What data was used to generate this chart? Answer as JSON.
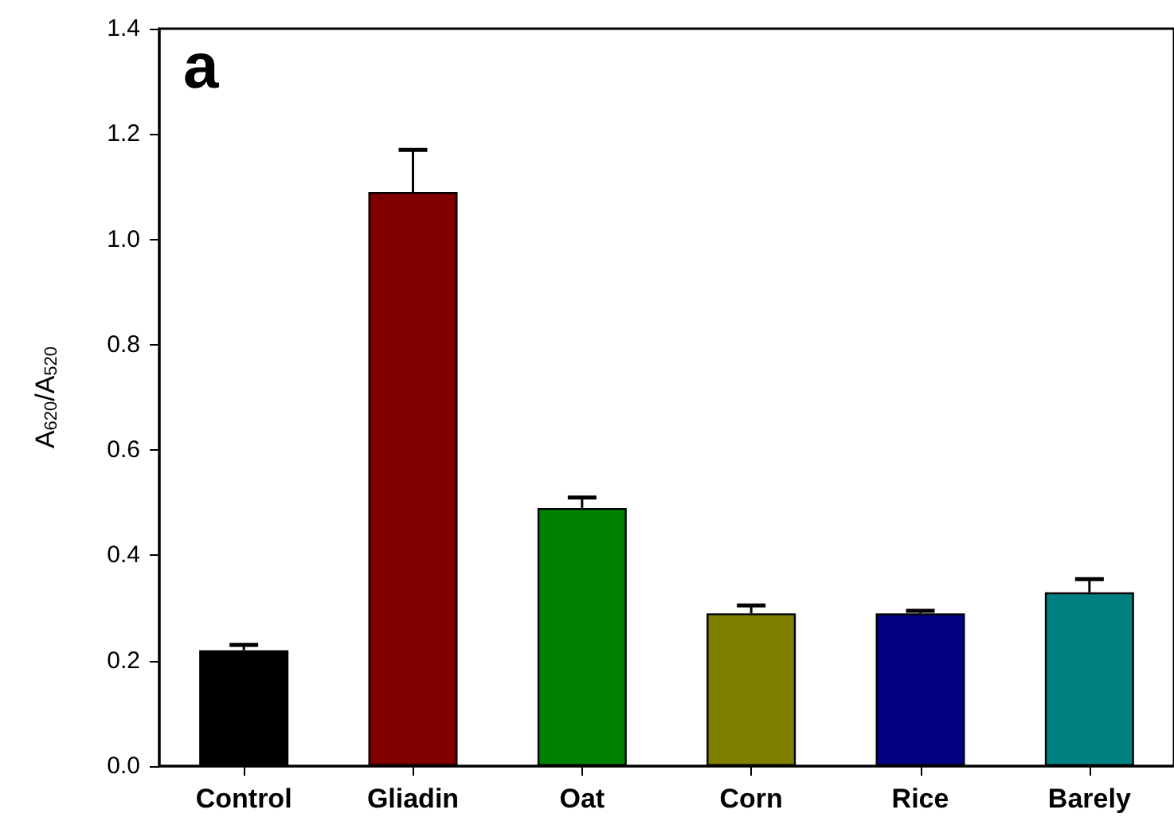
{
  "chart_data": {
    "type": "bar",
    "ylabel": "A$_{620}$/A$_{520}$",
    "annotations": [
      "a"
    ],
    "categories": [
      "Control",
      "Gliadin",
      "Oat",
      "Corn",
      "Rice",
      "Barely"
    ],
    "values": [
      0.22,
      1.09,
      0.49,
      0.29,
      0.29,
      0.33
    ],
    "colors": [
      "#000000",
      "#800000",
      "#008000",
      "#808000",
      "#000080",
      "#008080"
    ],
    "errors": [
      [
        0.22,
        0.23
      ],
      [
        1.09,
        1.17
      ],
      [
        0.49,
        0.51
      ],
      [
        0.29,
        0.305
      ],
      [
        0.29,
        0.295
      ],
      [
        0.33,
        0.355
      ]
    ],
    "ylim": [
      0,
      1.4
    ],
    "yticks": [
      {
        "value": 0,
        "label": "0.0"
      },
      0.2,
      0.4,
      0.6,
      0.8,
      {
        "value": 1,
        "label": "1.0"
      },
      1.2,
      1.4
    ],
    "grid": false
  }
}
